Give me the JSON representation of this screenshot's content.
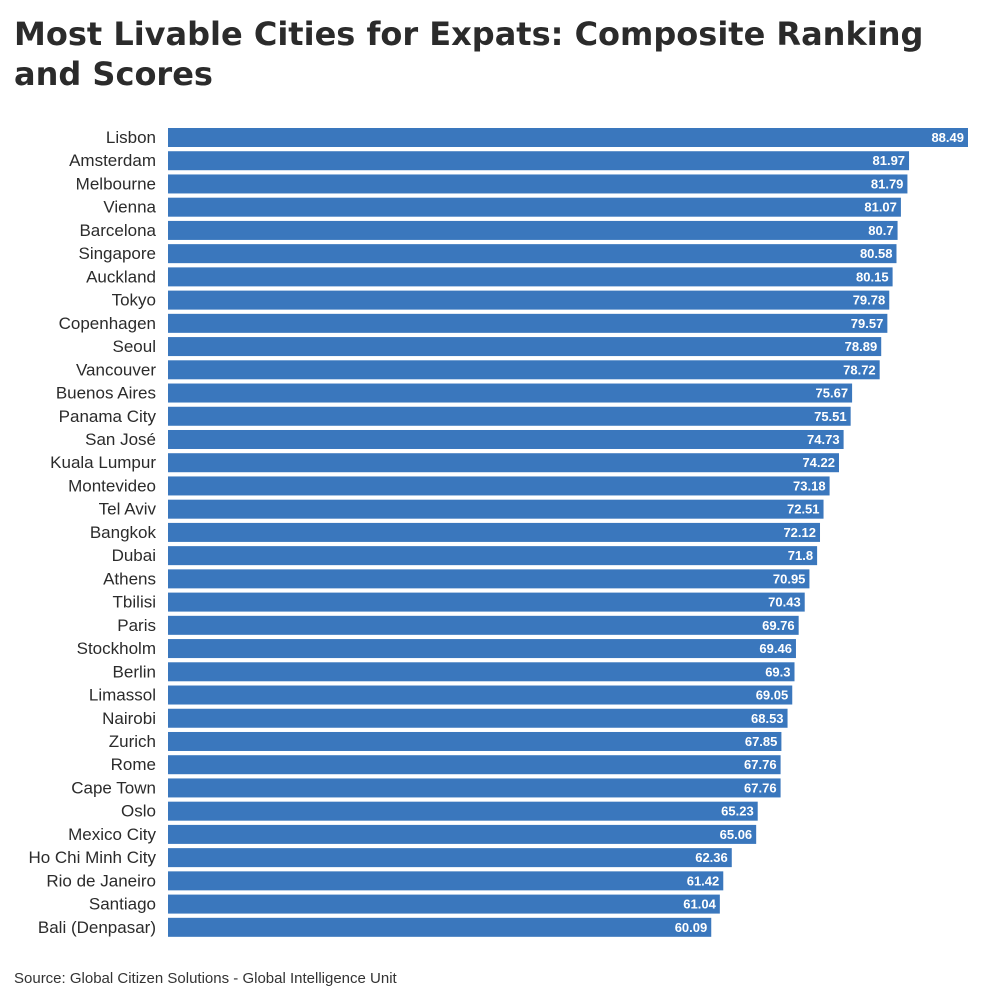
{
  "chart_data": {
    "type": "bar",
    "orientation": "horizontal",
    "title": "Most Livable Cities for Expats: Composite Ranking and Scores",
    "source": "Source: Global Citizen Solutions - Global Intelligence Unit",
    "xlim": [
      0,
      89
    ],
    "grid": false,
    "legend": "none",
    "bar_color": "#3a77bd",
    "label_color": "#ffffff",
    "categories": [
      "Lisbon",
      "Amsterdam",
      "Melbourne",
      "Vienna",
      "Barcelona",
      "Singapore",
      "Auckland",
      "Tokyo",
      "Copenhagen",
      "Seoul",
      "Vancouver",
      "Buenos Aires",
      "Panama City",
      "San José",
      "Kuala Lumpur",
      "Montevideo",
      "Tel Aviv",
      "Bangkok",
      "Dubai",
      "Athens",
      "Tbilisi",
      "Paris",
      "Stockholm",
      "Berlin",
      "Limassol",
      "Nairobi",
      "Zurich",
      "Rome",
      "Cape Town",
      "Oslo",
      "Mexico City",
      "Ho Chi Minh City",
      "Rio de Janeiro",
      "Santiago",
      "Bali (Denpasar)"
    ],
    "values": [
      88.49,
      81.97,
      81.79,
      81.07,
      80.7,
      80.58,
      80.15,
      79.78,
      79.57,
      78.89,
      78.72,
      75.67,
      75.51,
      74.73,
      74.22,
      73.18,
      72.51,
      72.12,
      71.8,
      70.95,
      70.43,
      69.76,
      69.46,
      69.3,
      69.05,
      68.53,
      67.85,
      67.76,
      67.76,
      65.23,
      65.06,
      62.36,
      61.42,
      61.04,
      60.09
    ],
    "value_labels": [
      "88.49",
      "81.97",
      "81.79",
      "81.07",
      "80.7",
      "80.58",
      "80.15",
      "79.78",
      "79.57",
      "78.89",
      "78.72",
      "75.67",
      "75.51",
      "74.73",
      "74.22",
      "73.18",
      "72.51",
      "72.12",
      "71.8",
      "70.95",
      "70.43",
      "69.76",
      "69.46",
      "69.3",
      "69.05",
      "68.53",
      "67.85",
      "67.76",
      "67.76",
      "65.23",
      "65.06",
      "62.36",
      "61.42",
      "61.04",
      "60.09"
    ]
  }
}
